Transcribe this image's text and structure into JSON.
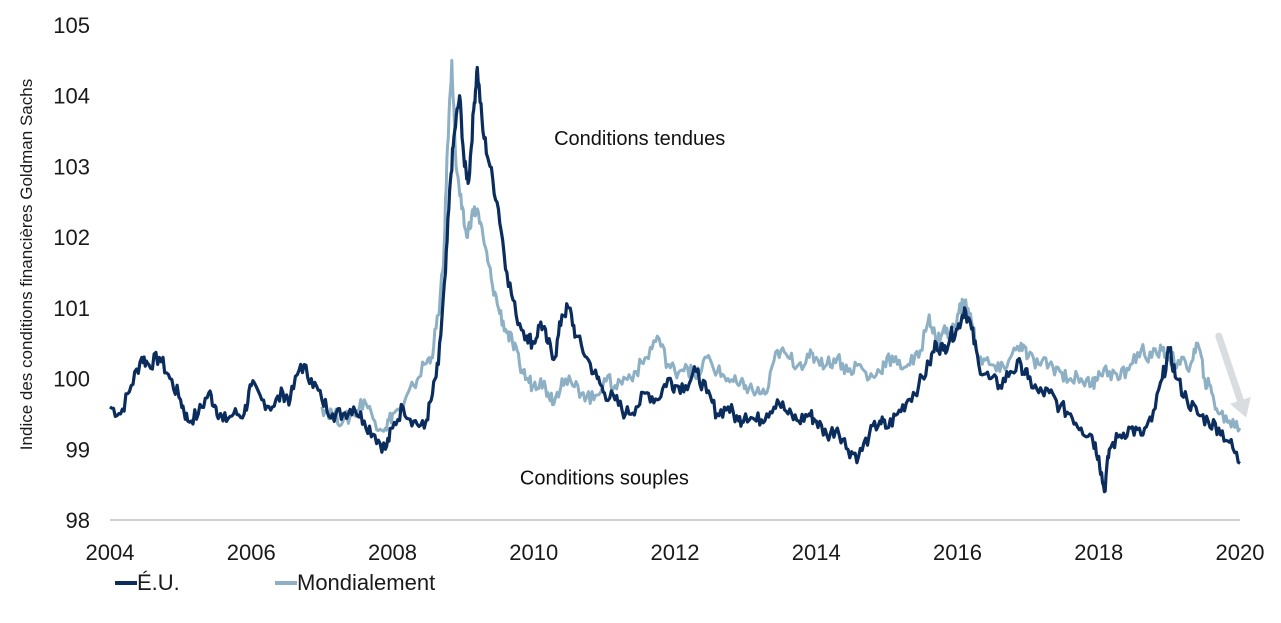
{
  "chart_data": {
    "type": "line",
    "title": "",
    "xlabel": "",
    "ylabel": "Indice des conditions financières Goldman Sachs",
    "xlim": [
      2004,
      2020
    ],
    "ylim": [
      98,
      105
    ],
    "x_ticks": [
      "2004",
      "2006",
      "2008",
      "2010",
      "2012",
      "2014",
      "2016",
      "2018",
      "2020"
    ],
    "y_ticks": [
      "98",
      "99",
      "100",
      "101",
      "102",
      "103",
      "104",
      "105"
    ],
    "grid": false,
    "legend_position": "bottom-left",
    "annotations": [
      {
        "text": "Conditions tendues",
        "x": 2011.5,
        "y": 103.3
      },
      {
        "text": "Conditions souples",
        "x": 2011.0,
        "y": 98.5
      }
    ],
    "arrow": {
      "from": [
        2019.7,
        100.6
      ],
      "to": [
        2020.2,
        99.45
      ],
      "color": "#d9dddf"
    },
    "series": [
      {
        "name": "É.U.",
        "color": "#0b2d5e",
        "points": [
          [
            2004.0,
            99.6
          ],
          [
            2004.15,
            99.5
          ],
          [
            2004.3,
            99.9
          ],
          [
            2004.45,
            100.3
          ],
          [
            2004.55,
            100.2
          ],
          [
            2004.7,
            100.3
          ],
          [
            2004.85,
            100.0
          ],
          [
            2005.0,
            99.7
          ],
          [
            2005.1,
            99.4
          ],
          [
            2005.25,
            99.5
          ],
          [
            2005.4,
            99.8
          ],
          [
            2005.5,
            99.6
          ],
          [
            2005.6,
            99.4
          ],
          [
            2005.75,
            99.5
          ],
          [
            2005.9,
            99.5
          ],
          [
            2006.0,
            99.9
          ],
          [
            2006.15,
            99.7
          ],
          [
            2006.3,
            99.6
          ],
          [
            2006.45,
            99.8
          ],
          [
            2006.55,
            99.7
          ],
          [
            2006.7,
            100.2
          ],
          [
            2006.85,
            100.0
          ],
          [
            2007.0,
            99.7
          ],
          [
            2007.15,
            99.5
          ],
          [
            2007.3,
            99.5
          ],
          [
            2007.45,
            99.6
          ],
          [
            2007.6,
            99.4
          ],
          [
            2007.75,
            99.2
          ],
          [
            2007.9,
            99.0
          ],
          [
            2008.0,
            99.3
          ],
          [
            2008.15,
            99.6
          ],
          [
            2008.3,
            99.4
          ],
          [
            2008.45,
            99.3
          ],
          [
            2008.55,
            99.7
          ],
          [
            2008.65,
            100.2
          ],
          [
            2008.75,
            101.5
          ],
          [
            2008.82,
            102.8
          ],
          [
            2008.88,
            103.5
          ],
          [
            2008.95,
            104.0
          ],
          [
            2009.02,
            103.0
          ],
          [
            2009.08,
            102.8
          ],
          [
            2009.15,
            103.8
          ],
          [
            2009.2,
            104.4
          ],
          [
            2009.28,
            103.5
          ],
          [
            2009.38,
            103.0
          ],
          [
            2009.5,
            102.4
          ],
          [
            2009.62,
            101.5
          ],
          [
            2009.75,
            100.9
          ],
          [
            2009.9,
            100.6
          ],
          [
            2010.0,
            100.5
          ],
          [
            2010.1,
            100.8
          ],
          [
            2010.2,
            100.5
          ],
          [
            2010.3,
            100.3
          ],
          [
            2010.4,
            100.9
          ],
          [
            2010.5,
            101.0
          ],
          [
            2010.6,
            100.6
          ],
          [
            2010.75,
            100.3
          ],
          [
            2010.9,
            100.0
          ],
          [
            2011.0,
            99.8
          ],
          [
            2011.15,
            99.7
          ],
          [
            2011.3,
            99.5
          ],
          [
            2011.45,
            99.6
          ],
          [
            2011.6,
            99.8
          ],
          [
            2011.75,
            99.7
          ],
          [
            2011.9,
            100.0
          ],
          [
            2012.0,
            99.9
          ],
          [
            2012.15,
            99.9
          ],
          [
            2012.3,
            100.1
          ],
          [
            2012.45,
            99.8
          ],
          [
            2012.6,
            99.5
          ],
          [
            2012.75,
            99.6
          ],
          [
            2012.9,
            99.4
          ],
          [
            2013.0,
            99.5
          ],
          [
            2013.15,
            99.4
          ],
          [
            2013.3,
            99.5
          ],
          [
            2013.45,
            99.7
          ],
          [
            2013.6,
            99.5
          ],
          [
            2013.75,
            99.4
          ],
          [
            2013.9,
            99.5
          ],
          [
            2014.0,
            99.4
          ],
          [
            2014.15,
            99.2
          ],
          [
            2014.3,
            99.3
          ],
          [
            2014.45,
            99.0
          ],
          [
            2014.6,
            98.9
          ],
          [
            2014.75,
            99.2
          ],
          [
            2014.9,
            99.4
          ],
          [
            2015.0,
            99.3
          ],
          [
            2015.15,
            99.5
          ],
          [
            2015.3,
            99.7
          ],
          [
            2015.45,
            99.9
          ],
          [
            2015.6,
            100.2
          ],
          [
            2015.7,
            100.5
          ],
          [
            2015.8,
            100.4
          ],
          [
            2015.9,
            100.6
          ],
          [
            2016.0,
            100.7
          ],
          [
            2016.1,
            101.0
          ],
          [
            2016.2,
            100.7
          ],
          [
            2016.3,
            100.2
          ],
          [
            2016.45,
            100.0
          ],
          [
            2016.6,
            99.9
          ],
          [
            2016.75,
            100.1
          ],
          [
            2016.9,
            100.2
          ],
          [
            2017.0,
            100.0
          ],
          [
            2017.15,
            99.8
          ],
          [
            2017.3,
            99.8
          ],
          [
            2017.45,
            99.6
          ],
          [
            2017.6,
            99.5
          ],
          [
            2017.75,
            99.3
          ],
          [
            2017.9,
            99.2
          ],
          [
            2018.0,
            98.9
          ],
          [
            2018.08,
            98.4
          ],
          [
            2018.15,
            99.0
          ],
          [
            2018.3,
            99.2
          ],
          [
            2018.45,
            99.3
          ],
          [
            2018.6,
            99.2
          ],
          [
            2018.75,
            99.4
          ],
          [
            2018.9,
            100.0
          ],
          [
            2019.0,
            100.4
          ],
          [
            2019.1,
            100.0
          ],
          [
            2019.25,
            99.7
          ],
          [
            2019.4,
            99.5
          ],
          [
            2019.55,
            99.4
          ],
          [
            2019.7,
            99.3
          ],
          [
            2019.85,
            99.1
          ],
          [
            2020.0,
            98.8
          ]
        ]
      },
      {
        "name": "Mondialement",
        "color": "#8db0c5",
        "points": [
          [
            2007.0,
            99.6
          ],
          [
            2007.15,
            99.5
          ],
          [
            2007.3,
            99.4
          ],
          [
            2007.45,
            99.5
          ],
          [
            2007.6,
            99.7
          ],
          [
            2007.75,
            99.4
          ],
          [
            2007.9,
            99.3
          ],
          [
            2008.0,
            99.5
          ],
          [
            2008.15,
            99.6
          ],
          [
            2008.3,
            99.9
          ],
          [
            2008.45,
            100.2
          ],
          [
            2008.55,
            100.3
          ],
          [
            2008.65,
            100.9
          ],
          [
            2008.72,
            101.6
          ],
          [
            2008.78,
            103.3
          ],
          [
            2008.84,
            104.5
          ],
          [
            2008.9,
            103.0
          ],
          [
            2008.98,
            102.4
          ],
          [
            2009.05,
            102.0
          ],
          [
            2009.12,
            102.3
          ],
          [
            2009.2,
            102.4
          ],
          [
            2009.3,
            101.9
          ],
          [
            2009.4,
            101.4
          ],
          [
            2009.5,
            101.0
          ],
          [
            2009.6,
            100.7
          ],
          [
            2009.7,
            100.5
          ],
          [
            2009.8,
            100.2
          ],
          [
            2009.9,
            100.0
          ],
          [
            2010.0,
            99.9
          ],
          [
            2010.1,
            100.0
          ],
          [
            2010.2,
            99.8
          ],
          [
            2010.3,
            99.7
          ],
          [
            2010.4,
            100.0
          ],
          [
            2010.55,
            99.9
          ],
          [
            2010.7,
            99.8
          ],
          [
            2010.85,
            99.7
          ],
          [
            2011.0,
            100.0
          ],
          [
            2011.15,
            99.9
          ],
          [
            2011.3,
            100.0
          ],
          [
            2011.45,
            100.1
          ],
          [
            2011.6,
            100.3
          ],
          [
            2011.75,
            100.6
          ],
          [
            2011.9,
            100.2
          ],
          [
            2012.0,
            100.1
          ],
          [
            2012.15,
            100.2
          ],
          [
            2012.3,
            100.0
          ],
          [
            2012.45,
            100.3
          ],
          [
            2012.6,
            100.1
          ],
          [
            2012.75,
            100.0
          ],
          [
            2012.9,
            99.9
          ],
          [
            2013.0,
            99.9
          ],
          [
            2013.15,
            99.8
          ],
          [
            2013.3,
            99.8
          ],
          [
            2013.45,
            100.4
          ],
          [
            2013.6,
            100.3
          ],
          [
            2013.75,
            100.2
          ],
          [
            2013.9,
            100.3
          ],
          [
            2014.0,
            100.3
          ],
          [
            2014.15,
            100.2
          ],
          [
            2014.3,
            100.3
          ],
          [
            2014.45,
            100.1
          ],
          [
            2014.6,
            100.2
          ],
          [
            2014.75,
            100.0
          ],
          [
            2014.9,
            100.1
          ],
          [
            2015.0,
            100.3
          ],
          [
            2015.15,
            100.2
          ],
          [
            2015.3,
            100.2
          ],
          [
            2015.45,
            100.3
          ],
          [
            2015.6,
            100.9
          ],
          [
            2015.7,
            100.5
          ],
          [
            2015.8,
            100.7
          ],
          [
            2015.9,
            100.6
          ],
          [
            2016.0,
            100.9
          ],
          [
            2016.1,
            101.1
          ],
          [
            2016.2,
            100.8
          ],
          [
            2016.3,
            100.3
          ],
          [
            2016.45,
            100.2
          ],
          [
            2016.6,
            100.1
          ],
          [
            2016.75,
            100.3
          ],
          [
            2016.9,
            100.5
          ],
          [
            2017.0,
            100.3
          ],
          [
            2017.15,
            100.2
          ],
          [
            2017.3,
            100.2
          ],
          [
            2017.45,
            100.1
          ],
          [
            2017.6,
            100.0
          ],
          [
            2017.75,
            100.0
          ],
          [
            2017.9,
            99.9
          ],
          [
            2018.0,
            100.1
          ],
          [
            2018.15,
            100.1
          ],
          [
            2018.3,
            100.0
          ],
          [
            2018.45,
            100.2
          ],
          [
            2018.6,
            100.4
          ],
          [
            2018.75,
            100.3
          ],
          [
            2018.9,
            100.4
          ],
          [
            2019.0,
            100.3
          ],
          [
            2019.15,
            100.2
          ],
          [
            2019.3,
            100.2
          ],
          [
            2019.4,
            100.5
          ],
          [
            2019.5,
            100.0
          ],
          [
            2019.6,
            99.8
          ],
          [
            2019.7,
            99.5
          ],
          [
            2019.85,
            99.4
          ],
          [
            2020.0,
            99.3
          ]
        ]
      }
    ]
  }
}
